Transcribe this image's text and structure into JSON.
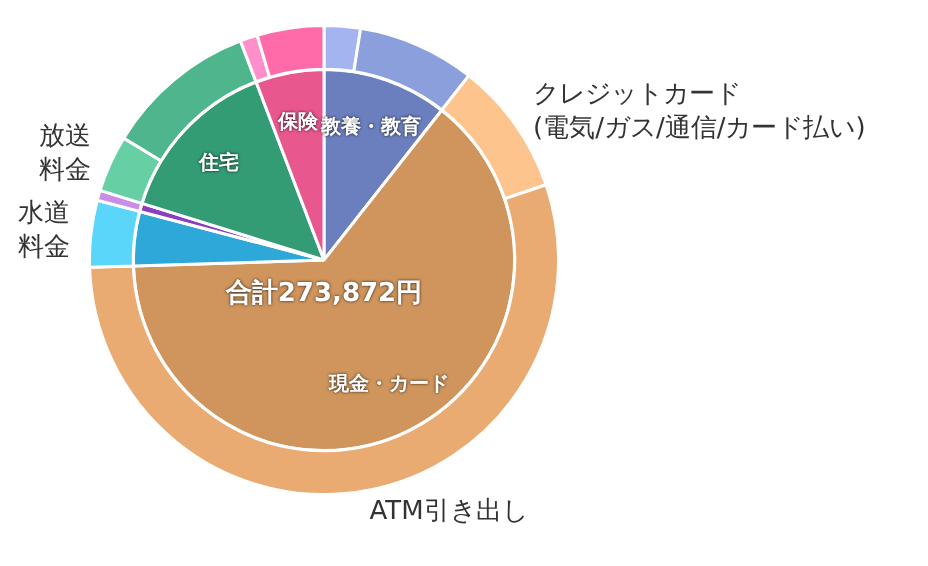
{
  "chart_data": [
    {
      "type": "pie",
      "annotations": [
        "合計273,872円"
      ],
      "legend": false,
      "categories": [
        "教養・教育",
        "現金・カード",
        null,
        null,
        "住宅",
        "保険"
      ],
      "values": [
        10.6,
        63.9,
        4.6,
        0.7,
        14.4,
        5.8
      ],
      "colors": [
        "#6b7fbf",
        "#d0955c",
        "#2ea8d8",
        "#8a3fbf",
        "#339c74",
        "#e8578e"
      ]
    },
    {
      "type": "donut",
      "legend": false,
      "categories": [
        null,
        null,
        "クレジットカード (電気/ガス/通信/カード払い)",
        "ATM引き出し",
        "水道料金",
        null,
        "放送料金",
        null,
        null,
        null
      ],
      "values": [
        2.5,
        8.1,
        9.2,
        54.7,
        4.6,
        0.7,
        3.9,
        10.5,
        1.2,
        4.6
      ],
      "colors": [
        "#a3b4f0",
        "#8a9fdc",
        "#fdc48e",
        "#e9ab72",
        "#5ad6fa",
        "#c98ee8",
        "#66cfa3",
        "#4fb58c",
        "#ff8fcc",
        "#ff6aa8"
      ]
    }
  ]
}
